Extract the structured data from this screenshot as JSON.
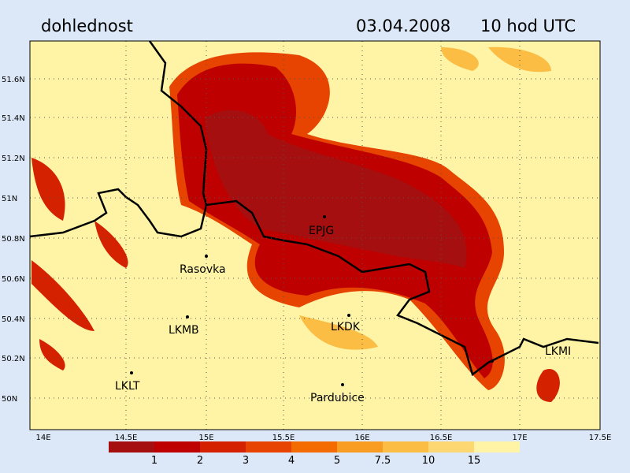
{
  "header": {
    "title": "dohlednost",
    "date": "03.04.2008",
    "time": "10 hod UTC"
  },
  "map": {
    "lat_labels": [
      "51.6N",
      "51.4N",
      "51.2N",
      "51N",
      "50.8N",
      "50.6N",
      "50.4N",
      "50.2N",
      "50N"
    ],
    "lon_labels": [
      "14E",
      "14.5E",
      "15E",
      "15.5E",
      "16E",
      "16.5E",
      "17E",
      "17.5E"
    ],
    "stations": [
      "EPJG",
      "Rasovka",
      "LKMB",
      "LKDK",
      "LKMI",
      "LKLT",
      "Pardubice"
    ]
  },
  "legend": {
    "labels": [
      "1",
      "2",
      "3",
      "4",
      "5",
      "7.5",
      "10",
      "15"
    ],
    "colors": [
      "#a50f0f",
      "#bf0000",
      "#d42200",
      "#e64400",
      "#f46c00",
      "#f99c22",
      "#fbbd44",
      "#fdd872",
      "#fff4a6"
    ]
  }
}
